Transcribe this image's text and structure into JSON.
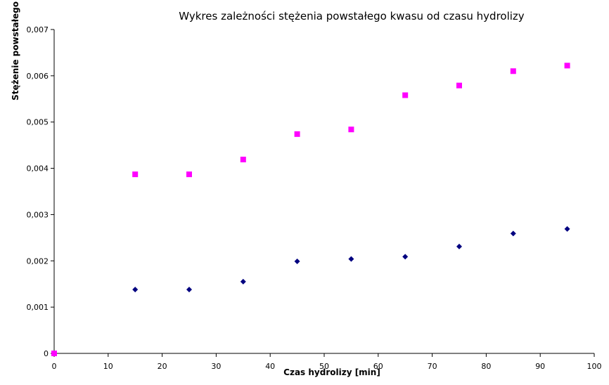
{
  "chart_data": {
    "type": "scatter",
    "title": "Wykres zależności stężenia powstałego kwasu od czasu hydrolizy",
    "xlabel": "Czas hydrolizy [min]",
    "ylabel": "Stężenie powstałego",
    "xlim": [
      0,
      100
    ],
    "ylim": [
      0,
      0.007
    ],
    "x_ticks": [
      0,
      10,
      20,
      30,
      40,
      50,
      60,
      70,
      80,
      90,
      100
    ],
    "x_tick_labels": [
      "0",
      "10",
      "20",
      "30",
      "40",
      "50",
      "60",
      "70",
      "80",
      "90",
      "100"
    ],
    "y_ticks": [
      0,
      0.001,
      0.002,
      0.003,
      0.004,
      0.005,
      0.006,
      0.007
    ],
    "y_tick_labels": [
      "0",
      "0,001",
      "0,002",
      "0,003",
      "0,004",
      "0,005",
      "0,006",
      "0,007"
    ],
    "grid": false,
    "series": [
      {
        "marker": "diamond",
        "color": "#000080",
        "x": [
          0,
          15,
          25,
          35,
          45,
          55,
          65,
          75,
          85,
          95
        ],
        "y": [
          0,
          0.00138,
          0.00138,
          0.00155,
          0.00199,
          0.00204,
          0.00209,
          0.00231,
          0.00259,
          0.00269
        ]
      },
      {
        "marker": "square",
        "color": "#ff00ff",
        "x": [
          0,
          15,
          25,
          35,
          45,
          55,
          65,
          75,
          85,
          95
        ],
        "y": [
          0,
          0.00387,
          0.00387,
          0.00419,
          0.00474,
          0.00484,
          0.00558,
          0.00579,
          0.0061,
          0.00622
        ]
      }
    ]
  }
}
